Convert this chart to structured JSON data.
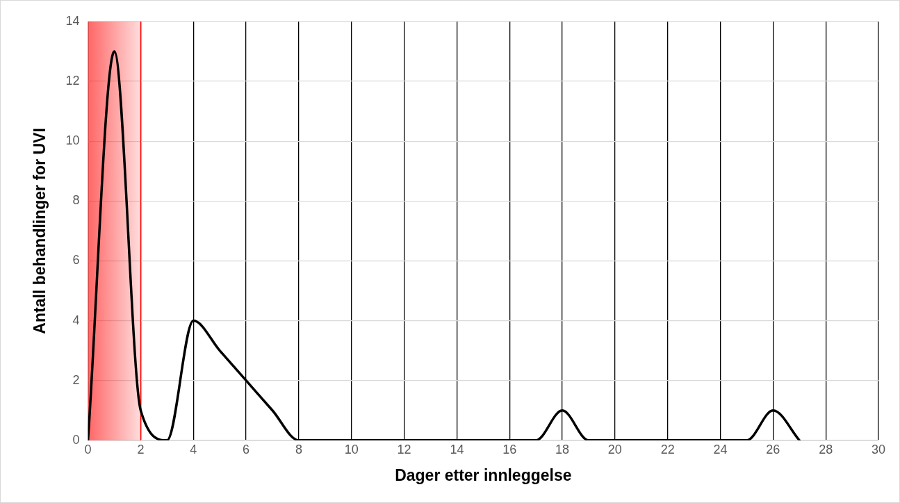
{
  "chart_data": {
    "type": "line",
    "xlabel": "Dager etter innleggelse",
    "ylabel": "Antall behandlinger for UVI",
    "x": [
      0,
      1,
      2,
      3,
      4,
      5,
      6,
      7,
      8,
      9,
      10,
      11,
      12,
      13,
      14,
      15,
      16,
      17,
      18,
      19,
      20,
      21,
      22,
      23,
      24,
      25,
      26,
      27
    ],
    "series": [
      {
        "color": "#000000",
        "values": [
          0,
          13,
          1,
          0,
          4,
          3,
          2,
          1,
          0,
          0,
          0,
          0,
          0,
          0,
          0,
          0,
          0,
          0,
          1,
          0,
          0,
          0,
          0,
          0,
          0,
          0,
          1,
          0
        ]
      }
    ],
    "xlim": [
      0,
      30
    ],
    "xticks": [
      0,
      2,
      4,
      6,
      8,
      10,
      12,
      14,
      16,
      18,
      20,
      22,
      24,
      26,
      28,
      30
    ],
    "ylim": [
      0,
      14
    ],
    "yticks": [
      0,
      2,
      4,
      6,
      8,
      10,
      12,
      14
    ],
    "bands": [
      {
        "axis": "x",
        "from": 0,
        "to": 2,
        "color": "#ff0000"
      }
    ],
    "ref_lines": [
      {
        "axis": "x",
        "value": 2,
        "color": "#ff0000"
      }
    ],
    "grid": true,
    "legend": false,
    "marker": "none",
    "line_style": "solid"
  }
}
